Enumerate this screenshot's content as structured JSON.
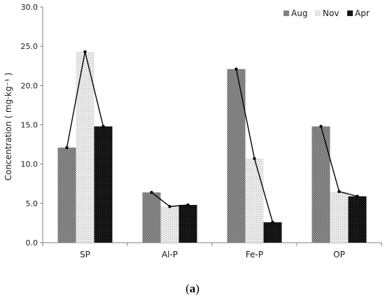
{
  "chart_data": {
    "type": "bar",
    "categories": [
      "SP",
      "Al-P",
      "Fe-P",
      "OP"
    ],
    "series": [
      {
        "name": "Aug",
        "values": [
          12.1,
          6.4,
          22.1,
          14.8
        ],
        "pattern": "diag-dense",
        "color": "#7a7a7a"
      },
      {
        "name": "Nov",
        "values": [
          24.3,
          4.6,
          10.7,
          6.5
        ],
        "pattern": "dots-light",
        "color": "#d0d0d0"
      },
      {
        "name": "Apr",
        "values": [
          14.8,
          4.8,
          2.6,
          5.9
        ],
        "pattern": "black",
        "color": "#111111"
      }
    ],
    "overlay_line": {
      "color": "#000000",
      "marker": "dot"
    },
    "ylim": [
      0,
      30
    ],
    "yticks": [
      "0.0",
      "5.0",
      "10.0",
      "15.0",
      "20.0",
      "25.0",
      "30.0"
    ],
    "ytick_values": [
      0,
      5,
      10,
      15,
      20,
      25,
      30
    ],
    "ylabel": "Concentration ( mg·kg⁻¹ )",
    "xlabel": "",
    "legend_position": "top-right",
    "grid": false
  },
  "caption": {
    "open": "(",
    "label": "a",
    "close": ")"
  }
}
